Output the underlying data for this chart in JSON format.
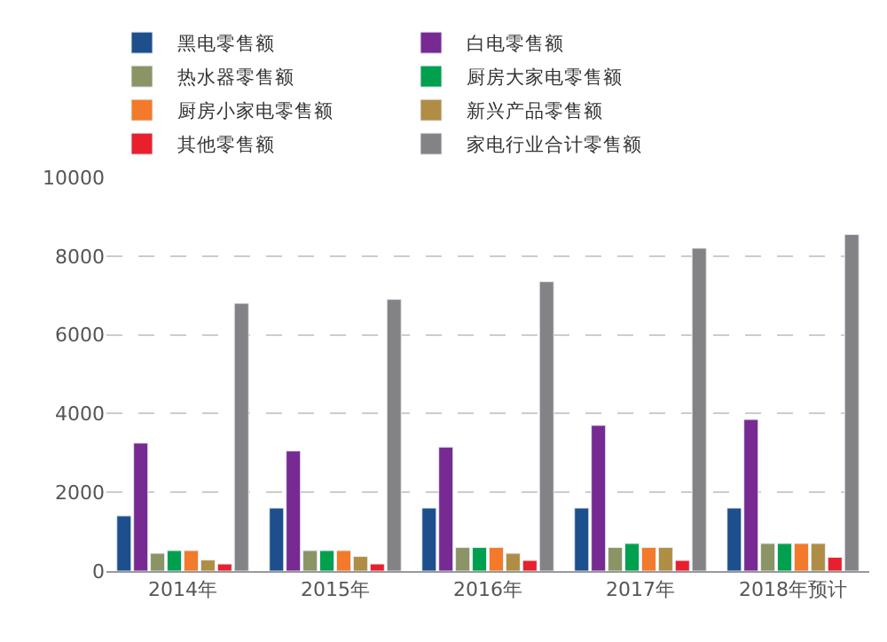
{
  "chart_data": {
    "type": "bar",
    "categories": [
      "2014年",
      "2015年",
      "2016年",
      "2017年",
      "2018年预计"
    ],
    "series": [
      {
        "name": "黑电零售额",
        "color": "#1c4f8c",
        "values": [
          1400,
          1600,
          1600,
          1600,
          1600
        ]
      },
      {
        "name": "白电零售额",
        "color": "#772a92",
        "values": [
          3250,
          3050,
          3150,
          3700,
          3850
        ]
      },
      {
        "name": "热水器零售额",
        "color": "#8a9464",
        "values": [
          450,
          520,
          600,
          600,
          700
        ]
      },
      {
        "name": "厨房大家电零售额",
        "color": "#00a04f",
        "values": [
          520,
          520,
          600,
          700,
          700
        ]
      },
      {
        "name": "厨房小家电零售额",
        "color": "#f27a2a",
        "values": [
          520,
          520,
          600,
          600,
          700
        ]
      },
      {
        "name": "新兴产品零售额",
        "color": "#b08d44",
        "values": [
          280,
          370,
          450,
          600,
          700
        ]
      },
      {
        "name": "其他零售额",
        "color": "#e8202e",
        "values": [
          180,
          180,
          270,
          270,
          350
        ]
      },
      {
        "name": "家电行业合计零售额",
        "color": "#838385",
        "values": [
          6800,
          6900,
          7350,
          8200,
          8550
        ]
      }
    ],
    "ylim": [
      0,
      10000
    ],
    "yticks": [
      0,
      2000,
      4000,
      6000,
      8000,
      10000
    ],
    "grid": "y",
    "legend": "top"
  }
}
